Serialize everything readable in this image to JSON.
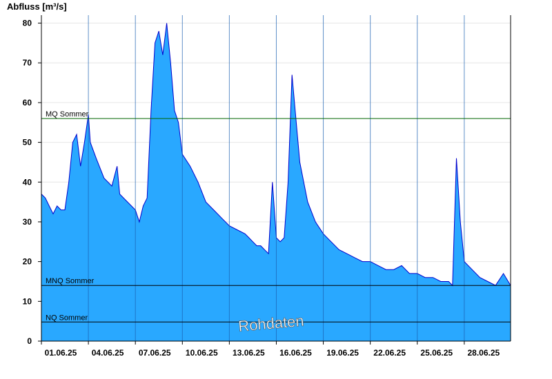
{
  "chart_data": {
    "type": "area",
    "ylabel": "Abfluss [m³/s]",
    "ylim": [
      0,
      82
    ],
    "yticks": [
      0,
      10,
      20,
      30,
      40,
      50,
      60,
      70,
      80
    ],
    "xlim": [
      "2025-06-01",
      "2025-06-30 23:00"
    ],
    "xtick_labels": [
      "01.06.25",
      "04.06.25",
      "07.06.25",
      "10.06.25",
      "13.06.25",
      "16.06.25",
      "19.06.25",
      "22.06.25",
      "25.06.25",
      "28.06.25"
    ],
    "xtick_dates": [
      "2025-06-01",
      "2025-06-04",
      "2025-06-07",
      "2025-06-10",
      "2025-06-13",
      "2025-06-16",
      "2025-06-19",
      "2025-06-22",
      "2025-06-25",
      "2025-06-28"
    ],
    "grid": true,
    "fill_color": "#29a8ff",
    "line_color": "#0000cc",
    "reference_lines": [
      {
        "label": "MQ Sommer",
        "value": 56,
        "color": "#006600"
      },
      {
        "label": "MNQ Sommer",
        "value": 14,
        "color": "#000000"
      },
      {
        "label": "NQ Sommer",
        "value": 4.8,
        "color": "#000000"
      }
    ],
    "watermark": "Rohdaten",
    "series": [
      {
        "x": [
          "2025-06-01 00:00",
          "2025-06-01 06:00",
          "2025-06-01 12:00",
          "2025-06-01 18:00",
          "2025-06-02 00:00",
          "2025-06-02 06:00",
          "2025-06-02 12:00",
          "2025-06-02 18:00",
          "2025-06-03 00:00",
          "2025-06-03 06:00",
          "2025-06-03 12:00",
          "2025-06-03 18:00",
          "2025-06-04 00:00",
          "2025-06-04 03:00",
          "2025-06-04 12:00",
          "2025-06-05 00:00",
          "2025-06-05 12:00",
          "2025-06-05 20:00",
          "2025-06-06 00:00",
          "2025-06-06 12:00",
          "2025-06-07 00:00",
          "2025-06-07 06:00",
          "2025-06-07 12:00",
          "2025-06-07 18:00",
          "2025-06-08 00:00",
          "2025-06-08 06:00",
          "2025-06-08 12:00",
          "2025-06-08 18:00",
          "2025-06-09 00:00",
          "2025-06-09 06:00",
          "2025-06-09 12:00",
          "2025-06-09 18:00",
          "2025-06-10 00:00",
          "2025-06-10 12:00",
          "2025-06-11 00:00",
          "2025-06-11 12:00",
          "2025-06-12 00:00",
          "2025-06-12 12:00",
          "2025-06-13 00:00",
          "2025-06-13 12:00",
          "2025-06-14 00:00",
          "2025-06-14 06:00",
          "2025-06-14 12:00",
          "2025-06-14 18:00",
          "2025-06-15 00:00",
          "2025-06-15 06:00",
          "2025-06-15 12:00",
          "2025-06-15 18:00",
          "2025-06-16 00:00",
          "2025-06-16 06:00",
          "2025-06-16 12:00",
          "2025-06-16 18:00",
          "2025-06-17 00:00",
          "2025-06-17 12:00",
          "2025-06-18 00:00",
          "2025-06-18 12:00",
          "2025-06-19 00:00",
          "2025-06-19 12:00",
          "2025-06-20 00:00",
          "2025-06-20 12:00",
          "2025-06-21 00:00",
          "2025-06-21 12:00",
          "2025-06-22 00:00",
          "2025-06-22 12:00",
          "2025-06-23 00:00",
          "2025-06-23 12:00",
          "2025-06-24 00:00",
          "2025-06-24 12:00",
          "2025-06-25 00:00",
          "2025-06-25 12:00",
          "2025-06-26 00:00",
          "2025-06-26 12:00",
          "2025-06-27 00:00",
          "2025-06-27 06:00",
          "2025-06-27 12:00",
          "2025-06-27 18:00",
          "2025-06-28 00:00",
          "2025-06-28 12:00",
          "2025-06-29 00:00",
          "2025-06-29 12:00",
          "2025-06-30 00:00",
          "2025-06-30 12:00",
          "2025-06-30 23:00"
        ],
        "y": [
          37,
          36,
          34,
          32,
          34,
          33,
          33,
          40,
          50,
          52,
          44,
          50,
          57,
          50,
          46,
          41,
          39,
          44,
          37,
          35,
          33,
          30,
          34,
          36,
          58,
          75,
          78,
          72,
          80,
          70,
          58,
          55,
          47,
          44,
          40,
          35,
          33,
          31,
          29,
          28,
          27,
          26,
          25,
          24,
          24,
          23,
          22,
          40,
          26,
          25,
          26,
          40,
          67,
          45,
          35,
          30,
          27,
          25,
          23,
          22,
          21,
          20,
          20,
          19,
          18,
          18,
          19,
          17,
          17,
          16,
          16,
          15,
          15,
          14,
          46,
          30,
          20,
          18,
          16,
          15,
          14,
          17,
          14
        ]
      }
    ]
  }
}
